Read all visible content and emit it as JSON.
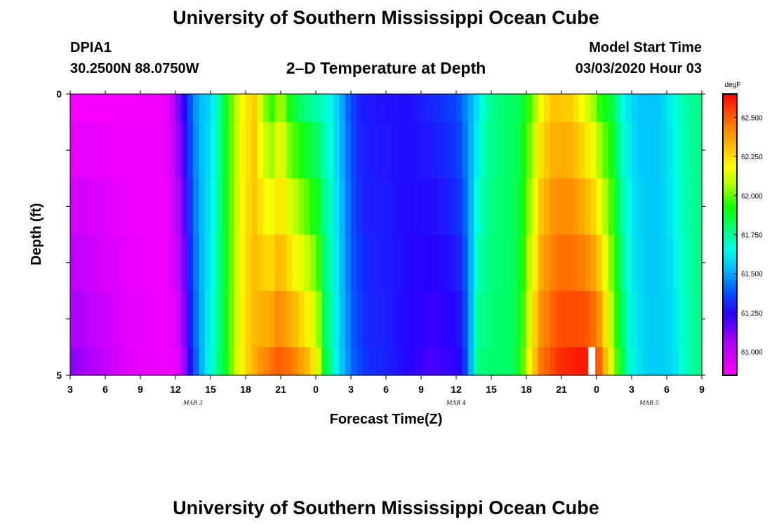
{
  "page": {
    "title_top": "University of Southern Mississippi Ocean Cube",
    "title_bottom": "University of Southern Mississippi Ocean Cube",
    "station": "DPIA1",
    "coords": "30.2500N 88.0750W",
    "subtitle": "2–D Temperature at Depth",
    "model_start_label": "Model Start Time",
    "model_start_value": "03/03/2020 Hour 03"
  },
  "chart_data": {
    "type": "heatmap",
    "title": "2–D Temperature at Depth",
    "xlabel": "Forecast Time(Z)",
    "ylabel": "Depth (ft)",
    "xlim": [
      0,
      54
    ],
    "ylim": [
      0,
      5
    ],
    "x_ticks": [
      {
        "x": 0,
        "label": "3"
      },
      {
        "x": 3,
        "label": "6"
      },
      {
        "x": 6,
        "label": "9"
      },
      {
        "x": 9,
        "label": "12"
      },
      {
        "x": 12,
        "label": "15"
      },
      {
        "x": 15,
        "label": "18"
      },
      {
        "x": 18,
        "label": "21"
      },
      {
        "x": 21,
        "label": "0"
      },
      {
        "x": 24,
        "label": "3"
      },
      {
        "x": 27,
        "label": "6"
      },
      {
        "x": 30,
        "label": "9"
      },
      {
        "x": 33,
        "label": "12"
      },
      {
        "x": 36,
        "label": "15"
      },
      {
        "x": 39,
        "label": "18"
      },
      {
        "x": 42,
        "label": "21"
      },
      {
        "x": 45,
        "label": "0"
      },
      {
        "x": 48,
        "label": "3"
      },
      {
        "x": 51,
        "label": "6"
      },
      {
        "x": 54,
        "label": "9"
      }
    ],
    "date_labels": [
      {
        "x": 10.5,
        "label": "MAR 3"
      },
      {
        "x": 33.0,
        "label": "MAR 4"
      },
      {
        "x": 49.5,
        "label": "MAR 5"
      }
    ],
    "y_ticks": [
      {
        "y": 0,
        "label": "0"
      },
      {
        "y": 1,
        "label": ""
      },
      {
        "y": 2,
        "label": ""
      },
      {
        "y": 3,
        "label": ""
      },
      {
        "y": 4,
        "label": ""
      },
      {
        "y": 5,
        "label": "5"
      }
    ],
    "colorbar": {
      "unit": "degF",
      "min": 60.85,
      "max": 62.65,
      "ticks": [
        "61.000",
        "61.250",
        "61.500",
        "61.750",
        "62.000",
        "62.250",
        "62.500"
      ],
      "tick_values": [
        61.0,
        61.25,
        61.5,
        61.75,
        62.0,
        62.25,
        62.5
      ]
    },
    "depth_rows": [
      "0.0-0.5",
      "0.5-1.5",
      "1.5-2.5",
      "2.5-3.5",
      "3.5-4.5",
      "4.5-5.0"
    ],
    "surface_series": [
      [
        0,
        60.87
      ],
      [
        8,
        60.88
      ],
      [
        8.5,
        60.95
      ],
      [
        9,
        61.05
      ],
      [
        9.5,
        61.2
      ],
      [
        10,
        61.3
      ],
      [
        10.5,
        61.45
      ],
      [
        11,
        61.52
      ],
      [
        12,
        61.58
      ],
      [
        12.6,
        61.7
      ],
      [
        13.3,
        61.9
      ],
      [
        14,
        62.05
      ],
      [
        14.8,
        62.2
      ],
      [
        15.8,
        62.28
      ],
      [
        16.5,
        62.05
      ],
      [
        17.3,
        61.95
      ],
      [
        18,
        62.1
      ],
      [
        18.8,
        61.9
      ],
      [
        19.8,
        61.8
      ],
      [
        20.6,
        61.75
      ],
      [
        21.4,
        61.72
      ],
      [
        22.2,
        61.65
      ],
      [
        23,
        61.55
      ],
      [
        23.8,
        61.4
      ],
      [
        24.6,
        61.3
      ],
      [
        25.5,
        61.28
      ],
      [
        29,
        61.27
      ],
      [
        33,
        61.35
      ],
      [
        34.5,
        61.55
      ],
      [
        35.5,
        61.72
      ],
      [
        36.5,
        61.78
      ],
      [
        38.5,
        61.83
      ],
      [
        39.5,
        62.0
      ],
      [
        40.3,
        62.2
      ],
      [
        41.3,
        62.3
      ],
      [
        42.8,
        62.28
      ],
      [
        44,
        62.15
      ],
      [
        44.8,
        62.05
      ],
      [
        45.3,
        61.95
      ],
      [
        46.3,
        61.85
      ],
      [
        47.3,
        61.65
      ],
      [
        48.5,
        61.55
      ],
      [
        50.3,
        61.55
      ],
      [
        51.3,
        61.63
      ],
      [
        52.3,
        61.72
      ],
      [
        54,
        61.78
      ]
    ],
    "bottom_series": [
      [
        0,
        61.12
      ],
      [
        5,
        60.92
      ],
      [
        9,
        60.88
      ],
      [
        9.5,
        60.97
      ],
      [
        10,
        61.2
      ],
      [
        10.8,
        61.42
      ],
      [
        11.6,
        61.6
      ],
      [
        12.6,
        61.75
      ],
      [
        13.3,
        61.9
      ],
      [
        14.1,
        62.1
      ],
      [
        15,
        62.25
      ],
      [
        16.3,
        62.4
      ],
      [
        17.8,
        62.5
      ],
      [
        19,
        62.45
      ],
      [
        20.4,
        62.3
      ],
      [
        21.2,
        62.15
      ],
      [
        21.8,
        61.85
      ],
      [
        22.5,
        61.7
      ],
      [
        23.2,
        61.55
      ],
      [
        24.2,
        61.4
      ],
      [
        25.3,
        61.32
      ],
      [
        27,
        61.3
      ],
      [
        31,
        61.2
      ],
      [
        33.5,
        61.25
      ],
      [
        34.2,
        61.5
      ],
      [
        34.8,
        61.78
      ],
      [
        36.5,
        61.8
      ],
      [
        38,
        61.82
      ],
      [
        38.6,
        61.95
      ],
      [
        39.2,
        62.15
      ],
      [
        40.2,
        62.45
      ],
      [
        41.8,
        62.58
      ],
      [
        44,
        62.62
      ],
      [
        45.1,
        62.55
      ],
      [
        45.8,
        62.3
      ],
      [
        46.5,
        62.05
      ],
      [
        47.2,
        61.85
      ],
      [
        48,
        61.65
      ],
      [
        49.4,
        61.56
      ],
      [
        51.5,
        61.58
      ],
      [
        52.5,
        61.7
      ],
      [
        54,
        61.78
      ]
    ],
    "missing_cell": {
      "x0": 44.3,
      "x1": 44.9,
      "y0": 4.5,
      "y1": 5.0
    }
  }
}
